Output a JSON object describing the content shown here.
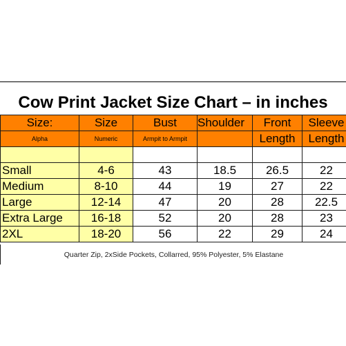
{
  "title": "Cow Print Jacket Size Chart – in inches",
  "headers": [
    "Size:",
    "Size",
    "Bust",
    "Shoulder",
    "Front",
    "Sleeve"
  ],
  "subheaders": [
    "Alpha",
    "Numeric",
    "Armpit to Armpit",
    "",
    "Length",
    "Length"
  ],
  "rows": [
    [
      "Small",
      "4-6",
      "43",
      "18.5",
      "26.5",
      "22"
    ],
    [
      "Medium",
      "8-10",
      "44",
      "19",
      "27",
      "22"
    ],
    [
      "Large",
      "12-14",
      "47",
      "20",
      "28",
      "22.5"
    ],
    [
      "Extra Large",
      "16-18",
      "52",
      "20",
      "28",
      "23"
    ],
    [
      "2XL",
      "18-20",
      "56",
      "22",
      "29",
      "24"
    ]
  ],
  "footer": "Quarter Zip, 2xSide Pockets, Collarred, 95% Polyester, 5% Elastane",
  "colors": {
    "header": "#ff8000",
    "size_column": "#ffffa6"
  }
}
